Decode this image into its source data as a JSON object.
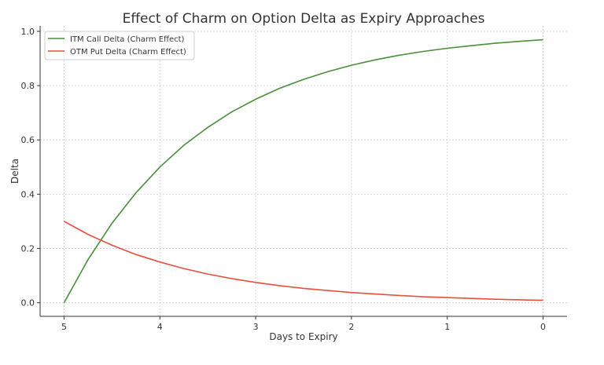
{
  "chart_data": {
    "type": "line",
    "title": "Effect of Charm on Option Delta as Expiry Approaches",
    "xlabel": "Days to Expiry",
    "ylabel": "Delta",
    "xlim": [
      5.25,
      -0.25
    ],
    "ylim": [
      -0.05,
      1.02
    ],
    "x_reversed": true,
    "xticks": [
      5,
      4,
      3,
      2,
      1,
      0
    ],
    "yticks": [
      0.0,
      0.2,
      0.4,
      0.6,
      0.8,
      1.0
    ],
    "grid": true,
    "legend_position": "top-left",
    "x": [
      5,
      4.75,
      4.5,
      4.25,
      4,
      3.75,
      3.5,
      3.25,
      3,
      2.75,
      2.5,
      2.25,
      2,
      1.75,
      1.5,
      1.25,
      1,
      0.75,
      0.5,
      0.25,
      0
    ],
    "series": [
      {
        "name": "ITM Call Delta (Charm Effect)",
        "color": "#4a8f3c",
        "values": [
          0,
          0.159,
          0.293,
          0.405,
          0.5,
          0.58,
          0.646,
          0.703,
          0.75,
          0.79,
          0.823,
          0.851,
          0.875,
          0.895,
          0.912,
          0.926,
          0.9375,
          0.947,
          0.956,
          0.963,
          0.969
        ]
      },
      {
        "name": "OTM Put Delta (Charm Effect)",
        "color": "#e8503e",
        "values": [
          0.3,
          0.252,
          0.212,
          0.178,
          0.15,
          0.126,
          0.106,
          0.089,
          0.075,
          0.063,
          0.053,
          0.045,
          0.0375,
          0.032,
          0.027,
          0.022,
          0.019,
          0.016,
          0.013,
          0.011,
          0.009
        ]
      }
    ]
  }
}
